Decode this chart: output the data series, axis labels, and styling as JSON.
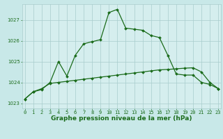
{
  "title": "Graphe pression niveau de la mer (hPa)",
  "background_color": "#c8e8e8",
  "plot_bg_color": "#d5eeee",
  "grid_color": "#a8cccc",
  "line_color": "#1a6b1a",
  "x_hours": [
    0,
    1,
    2,
    3,
    4,
    5,
    6,
    7,
    8,
    9,
    10,
    11,
    12,
    13,
    14,
    15,
    16,
    17,
    18,
    19,
    20,
    21,
    22,
    23
  ],
  "line1_y": [
    1023.2,
    1023.55,
    1023.65,
    1024.0,
    1025.0,
    1024.3,
    1025.3,
    1025.85,
    1025.95,
    1026.05,
    1027.35,
    1027.5,
    1026.6,
    1026.55,
    1026.5,
    1026.25,
    1026.15,
    1025.3,
    1024.4,
    1024.35,
    1024.35,
    1024.0,
    1023.9,
    1023.7
  ],
  "line2_y": [
    1023.2,
    1023.55,
    1023.7,
    1023.95,
    1024.0,
    1024.05,
    1024.1,
    1024.15,
    1024.2,
    1024.25,
    1024.3,
    1024.35,
    1024.4,
    1024.45,
    1024.5,
    1024.55,
    1024.6,
    1024.62,
    1024.65,
    1024.68,
    1024.7,
    1024.5,
    1024.0,
    1023.7
  ],
  "ylim": [
    1022.75,
    1027.75
  ],
  "yticks": [
    1023,
    1024,
    1025,
    1026,
    1027
  ],
  "xlim": [
    -0.3,
    23.3
  ],
  "xticks": [
    0,
    1,
    2,
    3,
    4,
    5,
    6,
    7,
    8,
    9,
    10,
    11,
    12,
    13,
    14,
    15,
    16,
    17,
    18,
    19,
    20,
    21,
    22,
    23
  ],
  "marker": "D",
  "marker_size": 2.0,
  "line_width": 0.9,
  "title_fontsize": 6.5,
  "tick_fontsize": 5.0,
  "title_color": "#1a6b1a",
  "tick_color": "#1a6b1a"
}
